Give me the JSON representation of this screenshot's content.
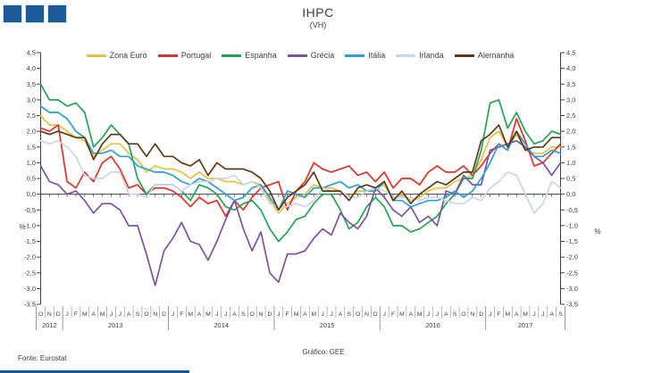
{
  "header": {
    "title": "IHPC",
    "subtitle": "(VH)"
  },
  "footer": {
    "source": "Fonte:  Eurostat",
    "credit": "Gráfico: GEE"
  },
  "branding": {
    "logo_square_color": "#1A5C99",
    "bottom_bar_color": "#17549B",
    "logo_squares": 3
  },
  "axes": {
    "y_tick_labels": [
      "4,5",
      "4,0",
      "3,5",
      "3,0",
      "2,5",
      "2,0",
      "1,5",
      "1,0",
      "0,5",
      "0,0",
      "-0,5",
      "-1,0",
      "-1,5",
      "-2,0",
      "-2,5",
      "-3,0",
      "-3,5"
    ],
    "left_unit": "%",
    "right_unit": "%"
  },
  "chart_data": {
    "type": "line",
    "title": "IHPC",
    "subtitle": "(VH)",
    "ylabel": "%",
    "ylim": [
      -3.5,
      4.5
    ],
    "y_step": 0.5,
    "grid": false,
    "legend_position": "top",
    "x_month_labels": [
      "O",
      "N",
      "D",
      "J",
      "F",
      "M",
      "A",
      "M",
      "J",
      "J",
      "A",
      "S",
      "O",
      "N",
      "D",
      "J",
      "F",
      "M",
      "A",
      "M",
      "J",
      "J",
      "A",
      "S",
      "O",
      "N",
      "D",
      "J",
      "F",
      "M",
      "A",
      "M",
      "J",
      "J",
      "A",
      "S",
      "O",
      "N",
      "D",
      "J",
      "F",
      "M",
      "A",
      "M",
      "J",
      "J",
      "A",
      "S",
      "O",
      "N",
      "D",
      "J",
      "F",
      "M",
      "A",
      "M",
      "J",
      "J",
      "A",
      "S"
    ],
    "years": [
      {
        "label": "2012",
        "from": 0,
        "to": 2
      },
      {
        "label": "2013",
        "from": 3,
        "to": 14
      },
      {
        "label": "2014",
        "from": 15,
        "to": 26
      },
      {
        "label": "2015",
        "from": 27,
        "to": 38
      },
      {
        "label": "2016",
        "from": 39,
        "to": 50
      },
      {
        "label": "2017",
        "from": 51,
        "to": 59
      }
    ],
    "series": [
      {
        "name": "Zona Euro",
        "color": "#E6C23C",
        "values": [
          2.5,
          2.2,
          2.2,
          2.0,
          1.8,
          1.7,
          1.2,
          1.4,
          1.6,
          1.6,
          1.3,
          1.1,
          0.7,
          0.9,
          0.8,
          0.8,
          0.7,
          0.5,
          0.7,
          0.5,
          0.5,
          0.4,
          0.4,
          0.3,
          0.4,
          0.3,
          -0.2,
          -0.6,
          -0.3,
          -0.1,
          0.0,
          0.3,
          0.2,
          0.2,
          0.1,
          -0.1,
          0.1,
          0.1,
          0.2,
          0.3,
          -0.2,
          0.0,
          -0.2,
          -0.1,
          0.1,
          0.2,
          0.2,
          0.4,
          0.5,
          0.6,
          1.1,
          1.8,
          2.0,
          1.5,
          1.9,
          1.4,
          1.3,
          1.3,
          1.5,
          1.5
        ]
      },
      {
        "name": "Portugal",
        "color": "#E03028",
        "values": [
          2.1,
          2.0,
          2.2,
          0.4,
          0.2,
          0.7,
          0.4,
          1.0,
          1.2,
          0.8,
          0.2,
          0.3,
          0.0,
          0.2,
          0.2,
          0.1,
          -0.1,
          -0.4,
          -0.1,
          -0.3,
          -0.2,
          -0.7,
          -0.2,
          -0.5,
          -0.1,
          0.2,
          0.3,
          0.4,
          -0.5,
          0.1,
          0.4,
          1.0,
          0.8,
          0.7,
          0.8,
          0.9,
          0.6,
          0.7,
          0.4,
          0.7,
          0.2,
          0.5,
          0.5,
          0.3,
          0.7,
          0.9,
          0.7,
          0.7,
          0.9,
          0.6,
          0.9,
          1.3,
          1.6,
          1.4,
          2.4,
          1.7,
          0.9,
          1.0,
          1.3,
          1.6
        ]
      },
      {
        "name": "Espanha",
        "color": "#22A455",
        "values": [
          3.5,
          3.0,
          3.0,
          2.8,
          2.9,
          2.6,
          1.5,
          1.8,
          2.2,
          1.9,
          1.6,
          0.5,
          0.0,
          0.3,
          0.3,
          0.3,
          0.1,
          -0.2,
          0.3,
          0.2,
          0.0,
          -0.4,
          -0.5,
          -0.3,
          -0.2,
          -0.5,
          -1.1,
          -1.5,
          -1.2,
          -0.8,
          -0.7,
          -0.3,
          0.0,
          0.0,
          -0.5,
          -1.1,
          -0.9,
          -0.4,
          -0.1,
          -0.4,
          -1.0,
          -1.0,
          -1.2,
          -1.1,
          -0.9,
          -0.7,
          -0.3,
          0.0,
          0.5,
          0.5,
          1.4,
          2.9,
          3.0,
          2.1,
          2.6,
          2.0,
          1.6,
          1.7,
          2.0,
          1.9
        ]
      },
      {
        "name": "Grécia",
        "color": "#7D52A1",
        "values": [
          0.9,
          0.4,
          0.3,
          0.0,
          0.1,
          -0.2,
          -0.6,
          -0.3,
          -0.3,
          -0.5,
          -1.0,
          -1.0,
          -1.9,
          -2.9,
          -1.8,
          -1.4,
          -0.9,
          -1.5,
          -1.6,
          -2.1,
          -1.5,
          -0.8,
          -0.2,
          -1.1,
          -1.8,
          -1.2,
          -2.5,
          -2.8,
          -1.9,
          -1.9,
          -1.8,
          -1.4,
          -1.1,
          -1.3,
          -0.6,
          -0.9,
          -1.1,
          -0.7,
          0.2,
          -0.1,
          -0.5,
          -0.7,
          -0.4,
          -0.9,
          -0.7,
          -1.0,
          0.1,
          0.0,
          0.6,
          0.3,
          0.3,
          1.4,
          1.5,
          1.6,
          1.7,
          1.5,
          1.2,
          1.0,
          0.6,
          1.0
        ]
      },
      {
        "name": "Itália",
        "color": "#2BA0D8",
        "values": [
          2.8,
          2.6,
          2.6,
          2.4,
          2.0,
          1.8,
          1.3,
          1.3,
          1.4,
          1.2,
          1.2,
          0.9,
          0.8,
          0.7,
          0.7,
          0.6,
          0.4,
          0.3,
          0.5,
          0.4,
          0.2,
          0.0,
          -0.2,
          -0.1,
          0.2,
          0.3,
          -0.1,
          -0.5,
          0.1,
          0.0,
          -0.1,
          0.2,
          0.2,
          0.3,
          0.4,
          0.2,
          0.3,
          0.1,
          0.1,
          0.4,
          -0.2,
          -0.2,
          -0.4,
          -0.3,
          -0.2,
          -0.2,
          -0.1,
          0.1,
          -0.1,
          0.1,
          0.5,
          1.0,
          1.6,
          1.4,
          2.0,
          1.6,
          1.2,
          1.2,
          1.4,
          1.3
        ]
      },
      {
        "name": "Irlanda",
        "color": "#C9D6E5",
        "values": [
          1.7,
          1.6,
          1.7,
          1.5,
          1.2,
          0.6,
          0.5,
          0.5,
          0.7,
          0.7,
          0.0,
          0.0,
          -0.1,
          0.3,
          0.3,
          0.3,
          0.1,
          0.3,
          0.4,
          0.4,
          0.5,
          0.5,
          0.6,
          0.3,
          0.4,
          0.2,
          -0.3,
          -0.4,
          -0.4,
          -0.3,
          -0.4,
          -0.2,
          0.2,
          0.1,
          0.1,
          -0.1,
          -0.1,
          0.1,
          0.2,
          0.1,
          -0.1,
          -0.1,
          -0.1,
          -0.2,
          -0.1,
          -0.1,
          -0.2,
          -0.3,
          -0.3,
          -0.1,
          -0.2,
          0.2,
          0.4,
          0.7,
          0.6,
          0.0,
          -0.6,
          -0.3,
          0.4,
          0.2
        ]
      },
      {
        "name": "Alemanha",
        "color": "#5E3A18",
        "values": [
          2.0,
          1.9,
          2.0,
          1.9,
          1.8,
          1.8,
          1.1,
          1.6,
          1.9,
          1.9,
          1.6,
          1.6,
          1.2,
          1.6,
          1.2,
          1.2,
          1.0,
          0.9,
          1.1,
          0.6,
          1.0,
          0.8,
          0.8,
          0.8,
          0.7,
          0.5,
          0.1,
          -0.5,
          -0.1,
          0.1,
          0.3,
          0.7,
          0.1,
          0.1,
          0.1,
          -0.2,
          0.2,
          0.3,
          0.2,
          0.4,
          -0.2,
          0.1,
          -0.3,
          0.0,
          0.2,
          0.4,
          0.3,
          0.5,
          0.7,
          0.7,
          1.7,
          1.9,
          2.2,
          1.5,
          2.0,
          1.4,
          1.5,
          1.5,
          1.8,
          1.8
        ]
      }
    ]
  }
}
